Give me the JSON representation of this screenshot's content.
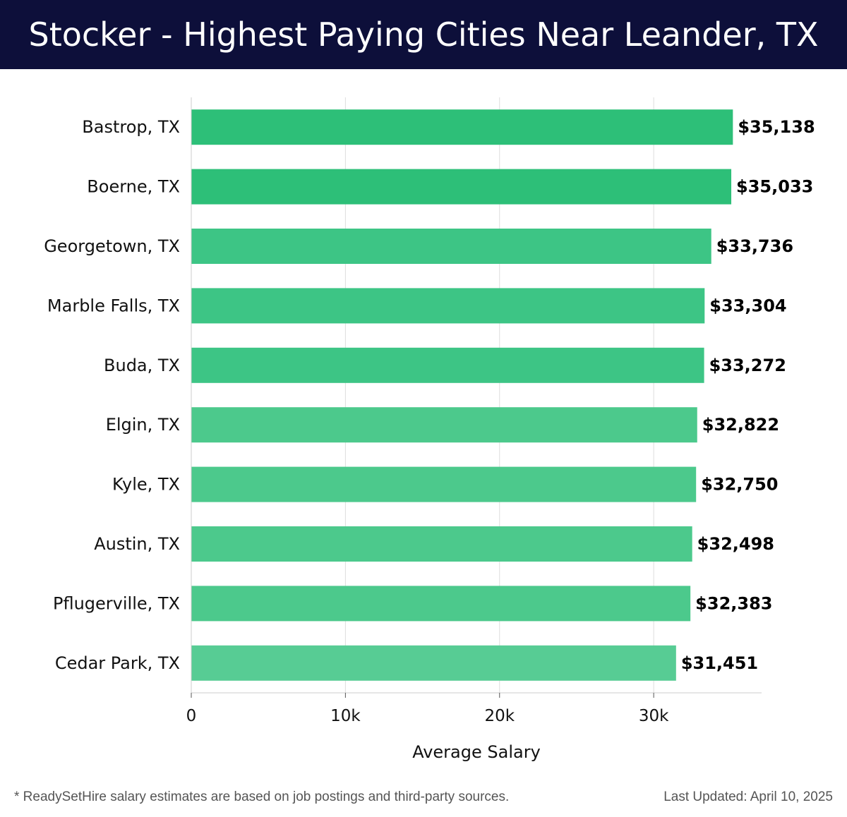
{
  "header": {
    "title": "Stocker - Highest Paying Cities Near Leander, TX"
  },
  "chart_data": {
    "type": "bar",
    "orientation": "horizontal",
    "title": "Stocker - Highest Paying Cities Near Leander, TX",
    "categories": [
      "Bastrop, TX",
      "Boerne, TX",
      "Georgetown, TX",
      "Marble Falls, TX",
      "Buda, TX",
      "Elgin, TX",
      "Kyle, TX",
      "Austin, TX",
      "Pflugerville, TX",
      "Cedar Park, TX"
    ],
    "values": [
      35138,
      35033,
      33736,
      33304,
      33272,
      32822,
      32750,
      32498,
      32383,
      31451
    ],
    "value_labels": [
      "$35,138",
      "$35,033",
      "$33,736",
      "$33,304",
      "$33,272",
      "$32,822",
      "$32,750",
      "$32,498",
      "$32,383",
      "$31,451"
    ],
    "bar_colors": [
      "#2dbf78",
      "#2dbf78",
      "#3dc585",
      "#3dc585",
      "#3dc585",
      "#4cc98c",
      "#4cc98c",
      "#4cc98c",
      "#4cc98c",
      "#57cc94"
    ],
    "xlabel": "Average Salary",
    "ylabel": "",
    "xlim": [
      0,
      37000
    ],
    "xticks": [
      0,
      10000,
      20000,
      30000
    ],
    "xtick_labels": [
      "0",
      "10k",
      "20k",
      "30k"
    ],
    "grid": true
  },
  "footer": {
    "note": "* ReadySetHire salary estimates are based on job postings and third-party sources.",
    "updated": "Last Updated: April 10, 2025"
  }
}
